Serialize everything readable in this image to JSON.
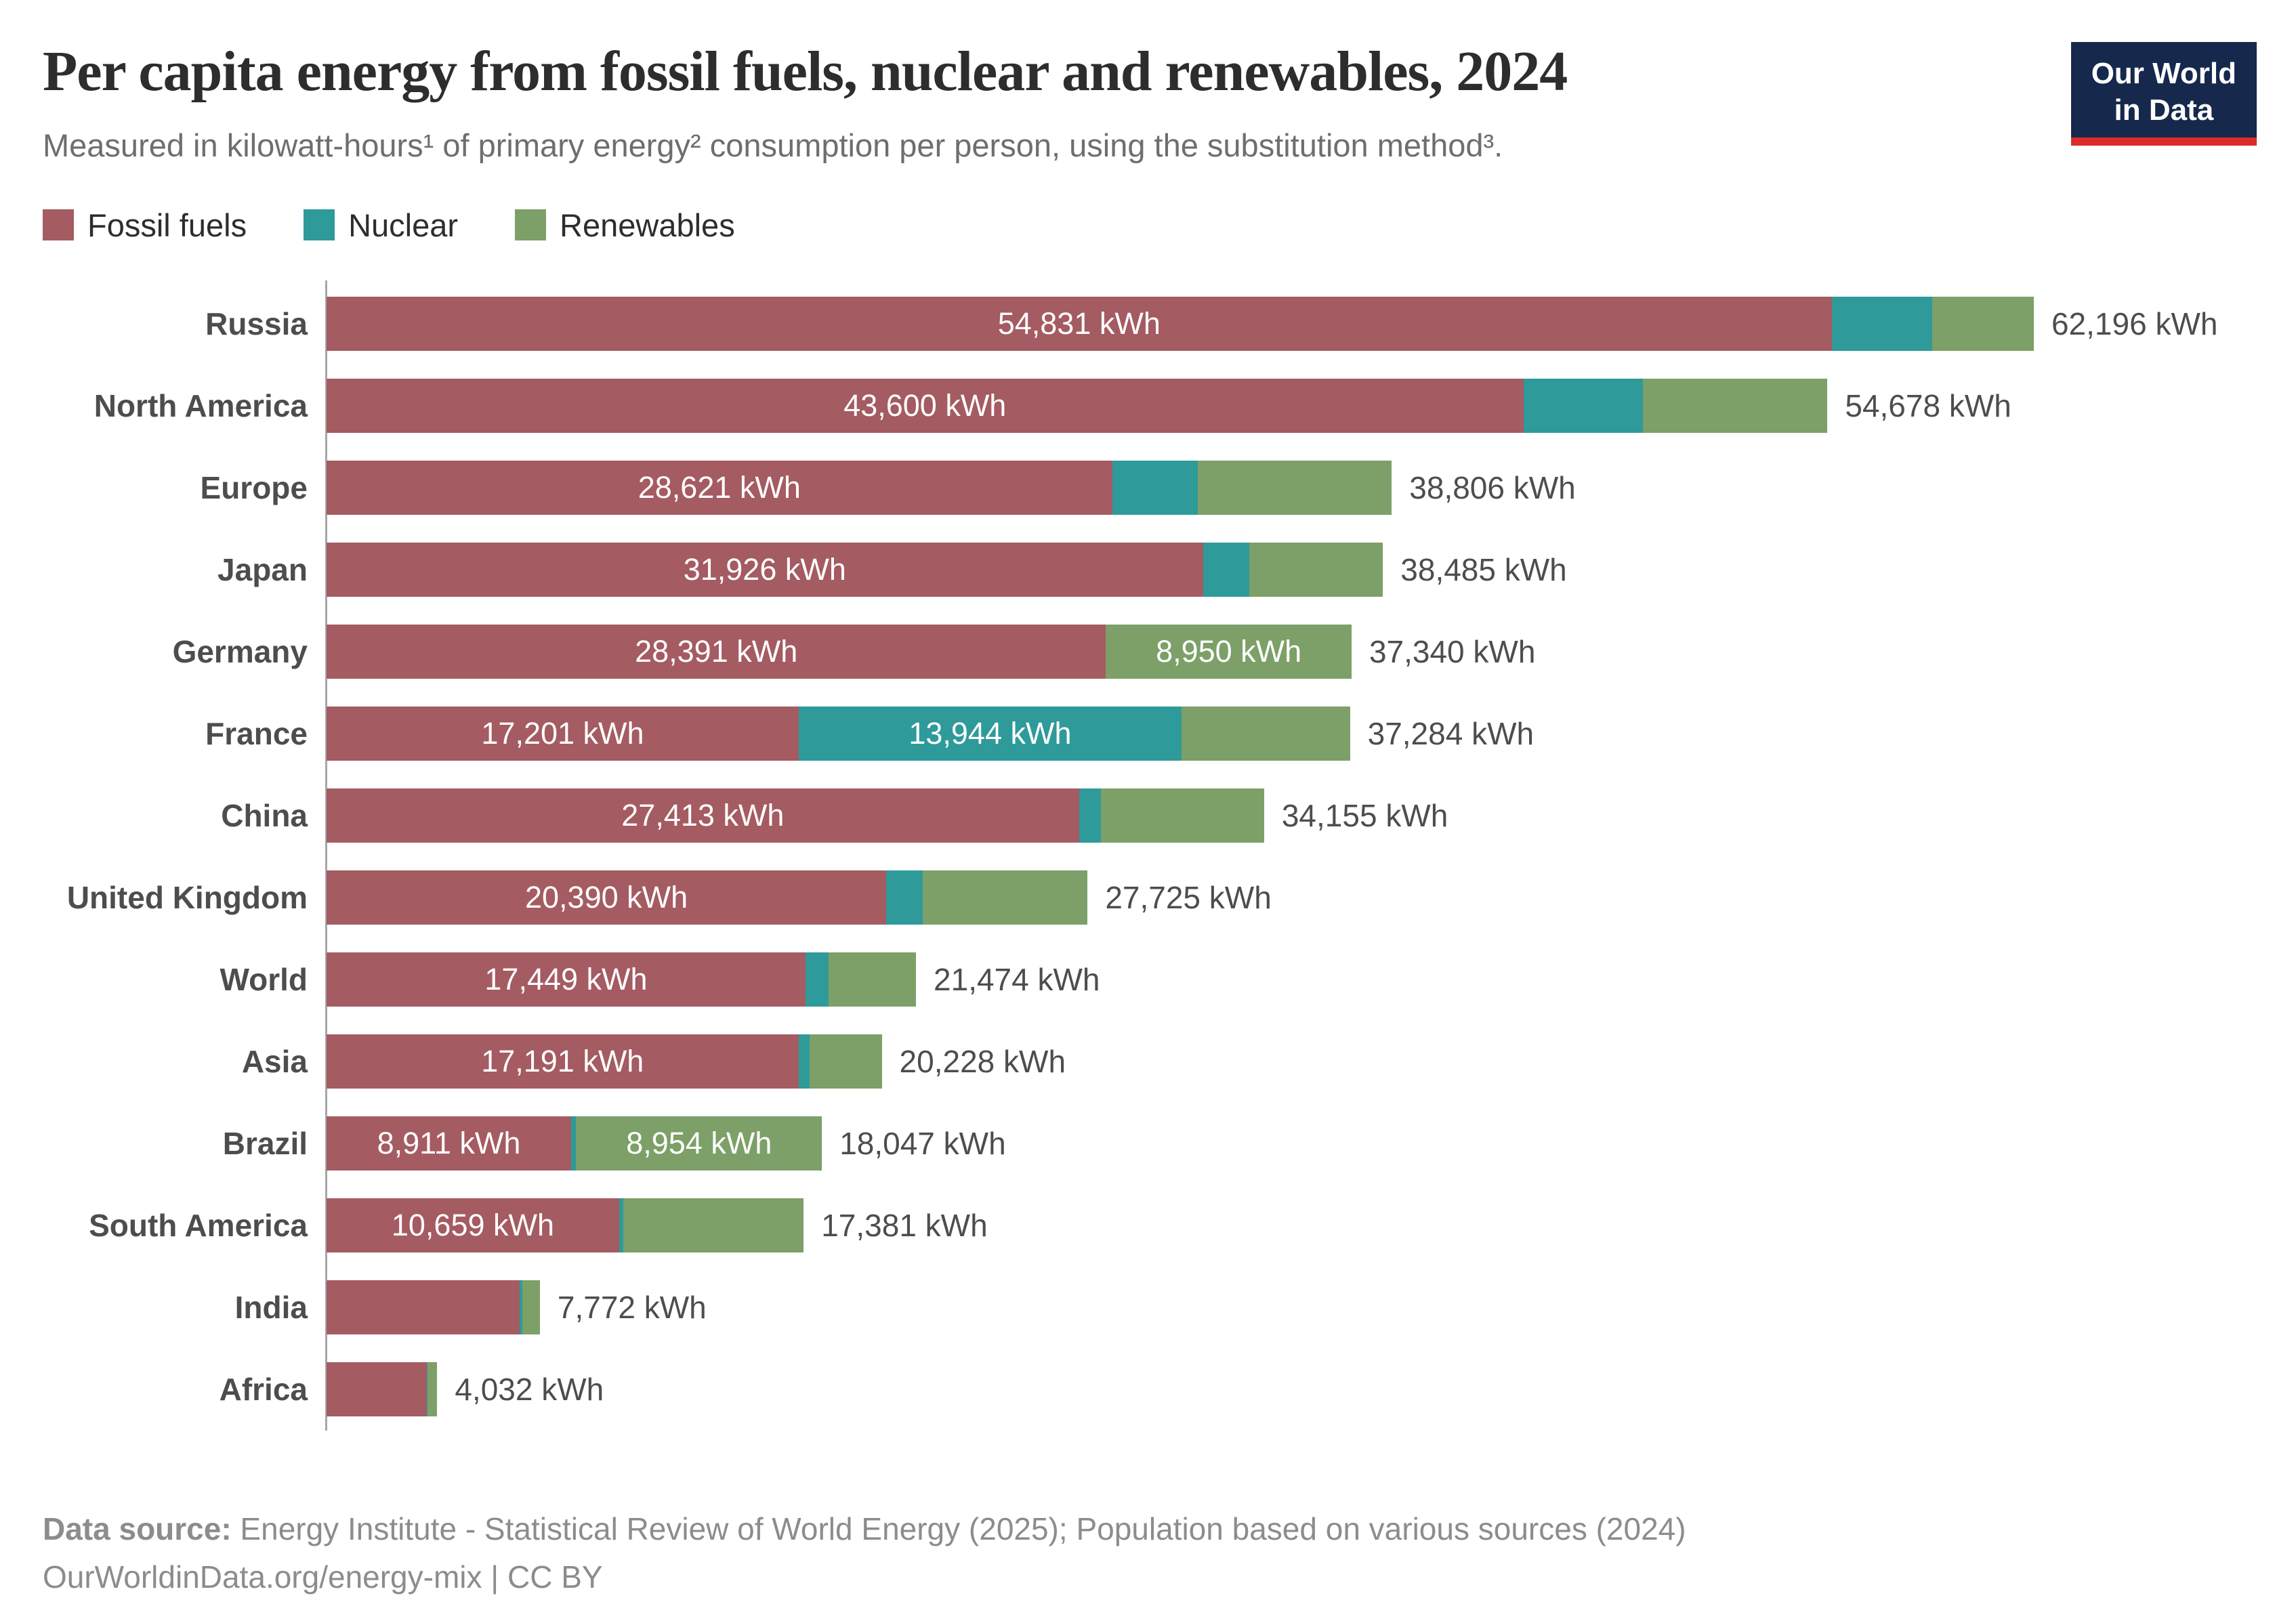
{
  "header": {
    "title": "Per capita energy from fossil fuels, nuclear and renewables, 2024",
    "subtitle": "Measured in kilowatt-hours¹ of primary energy² consumption per person, using the substitution method³.",
    "logo": {
      "line1": "Our World",
      "line2": "in Data",
      "bg_color": "#16294d",
      "stripe_color": "#db2c28"
    }
  },
  "legend": [
    {
      "label": "Fossil fuels",
      "color": "#a45b62"
    },
    {
      "label": "Nuclear",
      "color": "#2e9a9a"
    },
    {
      "label": "Renewables",
      "color": "#7ca068"
    }
  ],
  "chart_data": {
    "type": "bar",
    "orientation": "horizontal",
    "stacked": true,
    "unit": "kWh",
    "title": "Per capita energy from fossil fuels, nuclear and renewables, 2024",
    "xlabel": "",
    "ylabel": "",
    "x_max": 62196,
    "grid": false,
    "legend_position": "top",
    "series_names": [
      "Fossil fuels",
      "Nuclear",
      "Renewables"
    ],
    "colors": {
      "fossil": "#a45b62",
      "nuclear": "#2e9a9a",
      "renewables": "#7ca068"
    },
    "note": "fossil/total values and all printed labels are exact as shown; nuclear/renewables splits without printed labels are estimated from bar pixel widths",
    "rows": [
      {
        "category": "Russia",
        "fossil": 54831,
        "nuclear": 3665,
        "renewables": 3700,
        "total": 62196,
        "fossil_label": "54,831 kWh",
        "total_label": "62,196 kWh"
      },
      {
        "category": "North America",
        "fossil": 43600,
        "nuclear": 4356,
        "renewables": 6722,
        "total": 54678,
        "fossil_label": "43,600 kWh",
        "total_label": "54,678 kWh"
      },
      {
        "category": "Europe",
        "fossil": 28621,
        "nuclear": 3120,
        "renewables": 7065,
        "total": 38806,
        "fossil_label": "28,621 kWh",
        "total_label": "38,806 kWh"
      },
      {
        "category": "Japan",
        "fossil": 31926,
        "nuclear": 1695,
        "renewables": 4864,
        "total": 38485,
        "fossil_label": "31,926 kWh",
        "total_label": "38,485 kWh"
      },
      {
        "category": "Germany",
        "fossil": 28391,
        "nuclear": 0,
        "renewables": 8950,
        "total": 37340,
        "fossil_label": "28,391 kWh",
        "renewables_label": "8,950 kWh",
        "total_label": "37,340 kWh"
      },
      {
        "category": "France",
        "fossil": 17201,
        "nuclear": 13944,
        "renewables": 6139,
        "total": 37284,
        "fossil_label": "17,201 kWh",
        "nuclear_label": "13,944 kWh",
        "total_label": "37,284 kWh"
      },
      {
        "category": "China",
        "fossil": 27413,
        "nuclear": 790,
        "renewables": 5952,
        "total": 34155,
        "fossil_label": "27,413 kWh",
        "total_label": "34,155 kWh"
      },
      {
        "category": "United Kingdom",
        "fossil": 20390,
        "nuclear": 1340,
        "renewables": 5995,
        "total": 27725,
        "fossil_label": "20,390 kWh",
        "total_label": "27,725 kWh"
      },
      {
        "category": "World",
        "fossil": 17449,
        "nuclear": 848,
        "renewables": 3177,
        "total": 21474,
        "fossil_label": "17,449 kWh",
        "total_label": "21,474 kWh"
      },
      {
        "category": "Asia",
        "fossil": 17191,
        "nuclear": 400,
        "renewables": 2637,
        "total": 20228,
        "fossil_label": "17,191 kWh",
        "total_label": "20,228 kWh"
      },
      {
        "category": "Brazil",
        "fossil": 8911,
        "nuclear": 182,
        "renewables": 8954,
        "total": 18047,
        "fossil_label": "8,911 kWh",
        "renewables_label": "8,954 kWh",
        "total_label": "18,047 kWh"
      },
      {
        "category": "South America",
        "fossil": 10659,
        "nuclear": 140,
        "renewables": 6582,
        "total": 17381,
        "fossil_label": "10,659 kWh",
        "total_label": "17,381 kWh"
      },
      {
        "category": "India",
        "fossil": 7039,
        "nuclear": 93,
        "renewables": 640,
        "total": 7772,
        "total_label": "7,772 kWh"
      },
      {
        "category": "Africa",
        "fossil": 3651,
        "nuclear": 21,
        "renewables": 360,
        "total": 4032,
        "total_label": "4,032 kWh"
      }
    ]
  },
  "footer": {
    "source_label": "Data source:",
    "source_text": " Energy Institute - Statistical Review of World Energy (2025); Population based on various sources (2024)",
    "attribution": "OurWorldinData.org/energy-mix | CC BY"
  }
}
